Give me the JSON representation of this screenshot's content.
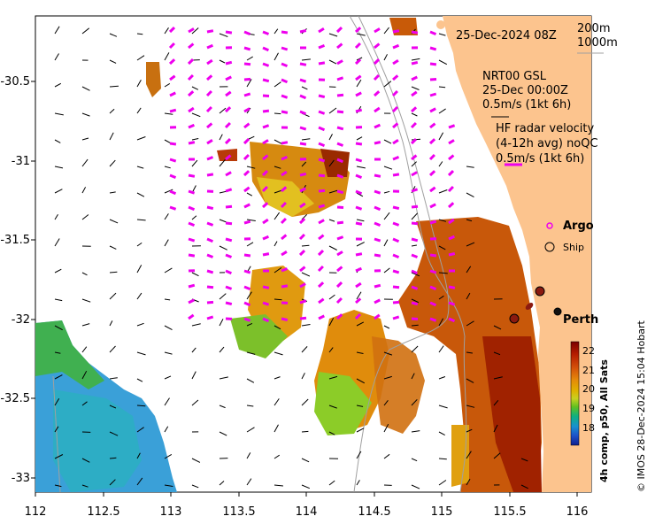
{
  "map": {
    "datetime": "25-Dec-2024 08Z",
    "isobath_labels": [
      "200m",
      "1000m"
    ],
    "gsl": {
      "line1": "NRT00 GSL",
      "line2": "25-Dec 00:00Z",
      "scale": "0.5m/s (1kt 6h)"
    },
    "radar": {
      "line1": "HF radar velocity",
      "line2": "(4-12h avg) noQC",
      "scale": "0.5m/s (1kt 6h)"
    },
    "legend": {
      "argo": "Argo",
      "ship": "Ship"
    },
    "place": "Perth",
    "colorbar": {
      "title": "4h comp, p50, All Sats",
      "ticks": [
        "22",
        "21",
        "20",
        "19",
        "18"
      ],
      "colors": [
        "#7a0000",
        "#b51d00",
        "#d4500a",
        "#e58a0a",
        "#e0b000",
        "#c8d020",
        "#60c020",
        "#10b080",
        "#1890d0",
        "#1c50c8",
        "#102090"
      ]
    },
    "credit": "© IMOS 28-Dec-2024 15:04 Hobart",
    "x_ticks": [
      "112",
      "112.5",
      "113",
      "113.5",
      "114",
      "114.5",
      "115",
      "115.5",
      "116"
    ],
    "y_ticks": [
      "-30.5",
      "-31",
      "-31.5",
      "-32",
      "-32.5",
      "-33"
    ],
    "colors": {
      "land": "#fcc48e",
      "vector_gsl": "#ee00ee",
      "vector_radar": "#000000",
      "coast": "#a0a0a0"
    }
  }
}
